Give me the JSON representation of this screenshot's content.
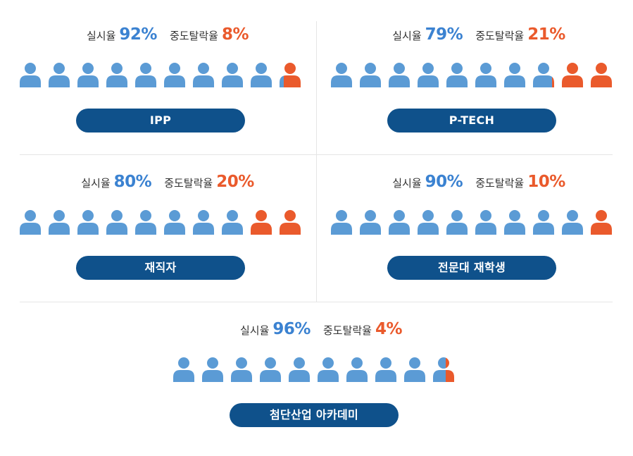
{
  "labels": {
    "implementation_rate": "실시율",
    "dropout_rate": "중도탈락율"
  },
  "colors": {
    "implementation": "#5b9bd5",
    "dropout": "#ea5a2c",
    "button": "#0f518b"
  },
  "chart_data": {
    "type": "pictograph",
    "icons_per_panel": 10,
    "programs": [
      {
        "name": "IPP",
        "implementation_rate": 92,
        "dropout_rate": 8,
        "implementation_text": "92%",
        "dropout_text": "8%"
      },
      {
        "name": "P-TECH",
        "implementation_rate": 79,
        "dropout_rate": 21,
        "implementation_text": "79%",
        "dropout_text": "21%"
      },
      {
        "name": "재직자",
        "implementation_rate": 80,
        "dropout_rate": 20,
        "implementation_text": "80%",
        "dropout_text": "20%"
      },
      {
        "name": "전문대 재학생",
        "implementation_rate": 90,
        "dropout_rate": 10,
        "implementation_text": "90%",
        "dropout_text": "10%"
      },
      {
        "name": "첨단산업 아카데미",
        "implementation_rate": 96,
        "dropout_rate": 4,
        "implementation_text": "96%",
        "dropout_text": "4%"
      }
    ]
  }
}
